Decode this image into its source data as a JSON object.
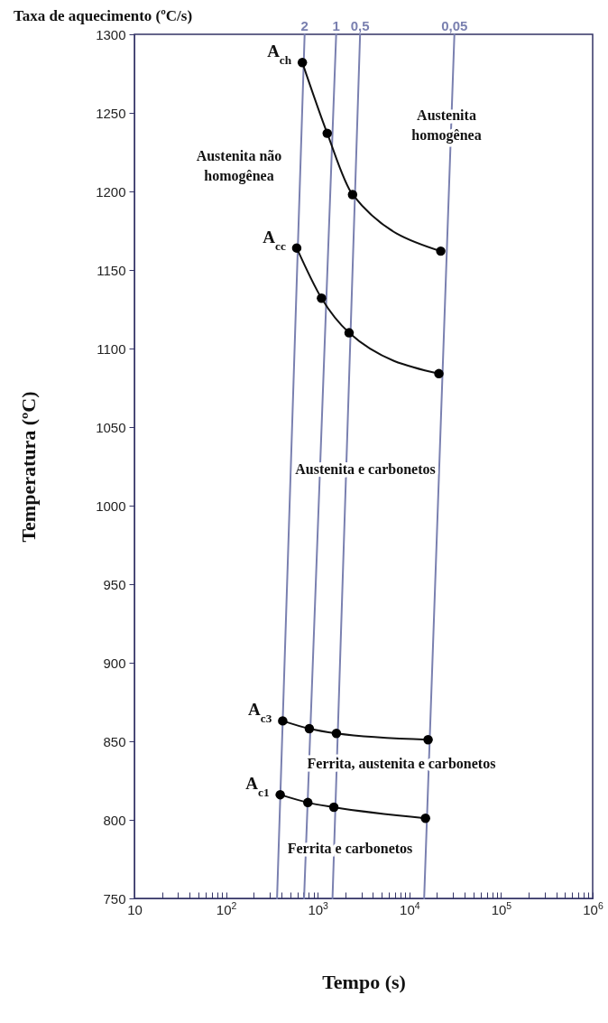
{
  "chart_data": {
    "type": "line",
    "xlabel": "Tempo (s)",
    "ylabel": "Temperatura (ºC)",
    "log": "x",
    "marker": "circle",
    "line_style": "solid",
    "grid": false,
    "xlim": [
      10,
      1000000
    ],
    "ylim": [
      750,
      1300
    ],
    "xticks": [
      10,
      {
        "value": 20,
        "label": null
      },
      {
        "value": 30,
        "label": null
      },
      {
        "value": 40,
        "label": null
      },
      {
        "value": 50,
        "label": null
      },
      {
        "value": 60,
        "label": null
      },
      {
        "value": 70,
        "label": null
      },
      {
        "value": 80,
        "label": null
      },
      {
        "value": 90,
        "label": null
      },
      {
        "value": 100,
        "label": "10$^{2}$"
      },
      {
        "value": 200,
        "label": null
      },
      {
        "value": 300,
        "label": null
      },
      {
        "value": 400,
        "label": null
      },
      {
        "value": 500,
        "label": null
      },
      {
        "value": 600,
        "label": null
      },
      {
        "value": 700,
        "label": null
      },
      {
        "value": 800,
        "label": null
      },
      {
        "value": 900,
        "label": null
      },
      {
        "value": 1000,
        "label": "10$^{3}$"
      },
      {
        "value": 2000,
        "label": null
      },
      {
        "value": 3000,
        "label": null
      },
      {
        "value": 4000,
        "label": null
      },
      {
        "value": 5000,
        "label": null
      },
      {
        "value": 6000,
        "label": null
      },
      {
        "value": 7000,
        "label": null
      },
      {
        "value": 8000,
        "label": null
      },
      {
        "value": 9000,
        "label": null
      },
      {
        "value": 10000,
        "label": "10$^{4}$"
      },
      {
        "value": 20000,
        "label": null
      },
      {
        "value": 30000,
        "label": null
      },
      {
        "value": 40000,
        "label": null
      },
      {
        "value": 50000,
        "label": null
      },
      {
        "value": 60000,
        "label": null
      },
      {
        "value": 70000,
        "label": null
      },
      {
        "value": 80000,
        "label": null
      },
      {
        "value": 90000,
        "label": null
      },
      {
        "value": 100000,
        "label": "10$^{5}$"
      },
      {
        "value": 200000,
        "label": null
      },
      {
        "value": 300000,
        "label": null
      },
      {
        "value": 400000,
        "label": null
      },
      {
        "value": 500000,
        "label": null
      },
      {
        "value": 600000,
        "label": null
      },
      {
        "value": 700000,
        "label": null
      },
      {
        "value": 800000,
        "label": null
      },
      {
        "value": 900000,
        "label": null
      },
      {
        "value": 1000000,
        "label": "10$^{6}$"
      }
    ],
    "yticks": [
      750,
      800,
      850,
      900,
      950,
      1000,
      1050,
      1100,
      1150,
      1200,
      1250,
      1300
    ],
    "series": [
      {
        "name": "2",
        "color": "#7a80b0",
        "marker": "none",
        "x": [
          360,
          720
        ],
        "values": [
          750,
          1300
        ]
      },
      {
        "name": "1",
        "color": "#7a80b0",
        "marker": "none",
        "x": [
          710,
          1590
        ],
        "values": [
          750,
          1300
        ]
      },
      {
        "name": "0,5",
        "color": "#7a80b0",
        "marker": "none",
        "x": [
          1450,
          2900
        ],
        "values": [
          750,
          1300
        ]
      },
      {
        "name": "0,05",
        "color": "#7a80b0",
        "marker": "none",
        "x": [
          14500,
          31000
        ],
        "values": [
          750,
          1300
        ]
      },
      {
        "name": "A$_{ch}$",
        "color": "#111111",
        "x": [
          680,
          1270,
          2400,
          22000
        ],
        "values": [
          1282,
          1237,
          1198,
          1162
        ]
      },
      {
        "name": "A$_{cc}$",
        "color": "#111111",
        "x": [
          590,
          1100,
          2200,
          21000
        ],
        "values": [
          1164,
          1132,
          1110,
          1084
        ]
      },
      {
        "name": "A$_{c3}$",
        "color": "#111111",
        "x": [
          415,
          810,
          1600,
          16000
        ],
        "values": [
          863,
          858,
          855,
          851
        ]
      },
      {
        "name": "A$_{c1}$",
        "color": "#111111",
        "x": [
          390,
          780,
          1500,
          15000
        ],
        "values": [
          816,
          811,
          808,
          801
        ]
      }
    ],
    "annotations": [
      "Taxa de aquecimento (ºC/s)",
      "Austenita não\nhomogênea",
      "Austenita\nhomogênea",
      "Austenita e carbonetos",
      "Ferrita, austenita e carbonetos",
      "Ferrita e carbonetos"
    ]
  }
}
